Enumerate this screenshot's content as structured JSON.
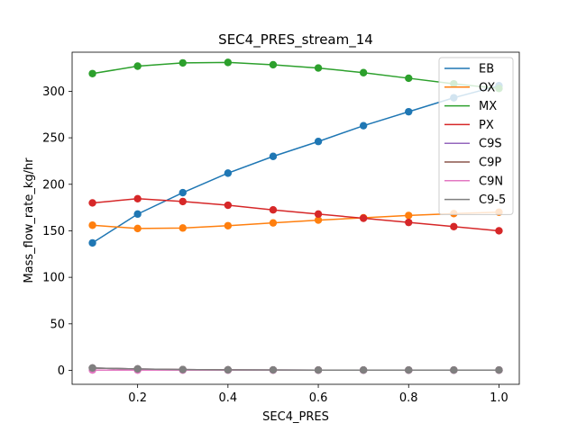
{
  "chart_data": {
    "type": "line",
    "title": "SEC4_PRES_stream_14",
    "xlabel": "SEC4_PRES",
    "ylabel": "Mass_flow_rate_kg/hr",
    "xlim": [
      0.055,
      1.045
    ],
    "ylim": [
      -15,
      342
    ],
    "x_ticks": [
      0.2,
      0.4,
      0.6,
      0.8,
      1.0
    ],
    "x_tick_labels": [
      "0.2",
      "0.4",
      "0.6",
      "0.8",
      "1.0"
    ],
    "y_ticks": [
      0,
      50,
      100,
      150,
      200,
      250,
      300
    ],
    "y_tick_labels": [
      "0",
      "50",
      "100",
      "150",
      "200",
      "250",
      "300"
    ],
    "grid": false,
    "legend_position": "top-right",
    "x": [
      0.1,
      0.2,
      0.3,
      0.4,
      0.5,
      0.6,
      0.7,
      0.8,
      0.9,
      1.0
    ],
    "series": [
      {
        "name": "EB",
        "color": "#1f77b4",
        "values": [
          137,
          168,
          191,
          212,
          230,
          246,
          263,
          278,
          293,
          306
        ]
      },
      {
        "name": "OX",
        "color": "#ff7f0e",
        "values": [
          156,
          152.5,
          153,
          155.5,
          158.5,
          161.5,
          164,
          166.5,
          168.5,
          170
        ]
      },
      {
        "name": "MX",
        "color": "#2ca02c",
        "values": [
          319,
          327,
          330.5,
          331,
          328.5,
          325,
          320,
          314,
          308,
          303
        ]
      },
      {
        "name": "PX",
        "color": "#d62728",
        "values": [
          180,
          184.5,
          181.5,
          177.5,
          172.5,
          168,
          163.5,
          159,
          154.5,
          150
        ]
      },
      {
        "name": "C9S",
        "color": "#9467bd",
        "values": [
          2.5,
          1.5,
          0.8,
          0.5,
          0.4,
          0.3,
          0.3,
          0.3,
          0.3,
          0.3
        ]
      },
      {
        "name": "C9P",
        "color": "#8c564b",
        "values": [
          2.5,
          1.5,
          0.8,
          0.5,
          0.4,
          0.3,
          0.3,
          0.3,
          0.3,
          0.3
        ]
      },
      {
        "name": "C9N",
        "color": "#e377c2",
        "values": [
          0.3,
          0.2,
          0.2,
          0.2,
          0.2,
          0.2,
          0.2,
          0.2,
          0.2,
          0.2
        ]
      },
      {
        "name": "C9-5",
        "color": "#7f7f7f",
        "values": [
          2.5,
          1.5,
          0.8,
          0.5,
          0.4,
          0.3,
          0.3,
          0.3,
          0.3,
          0.3
        ]
      }
    ]
  }
}
